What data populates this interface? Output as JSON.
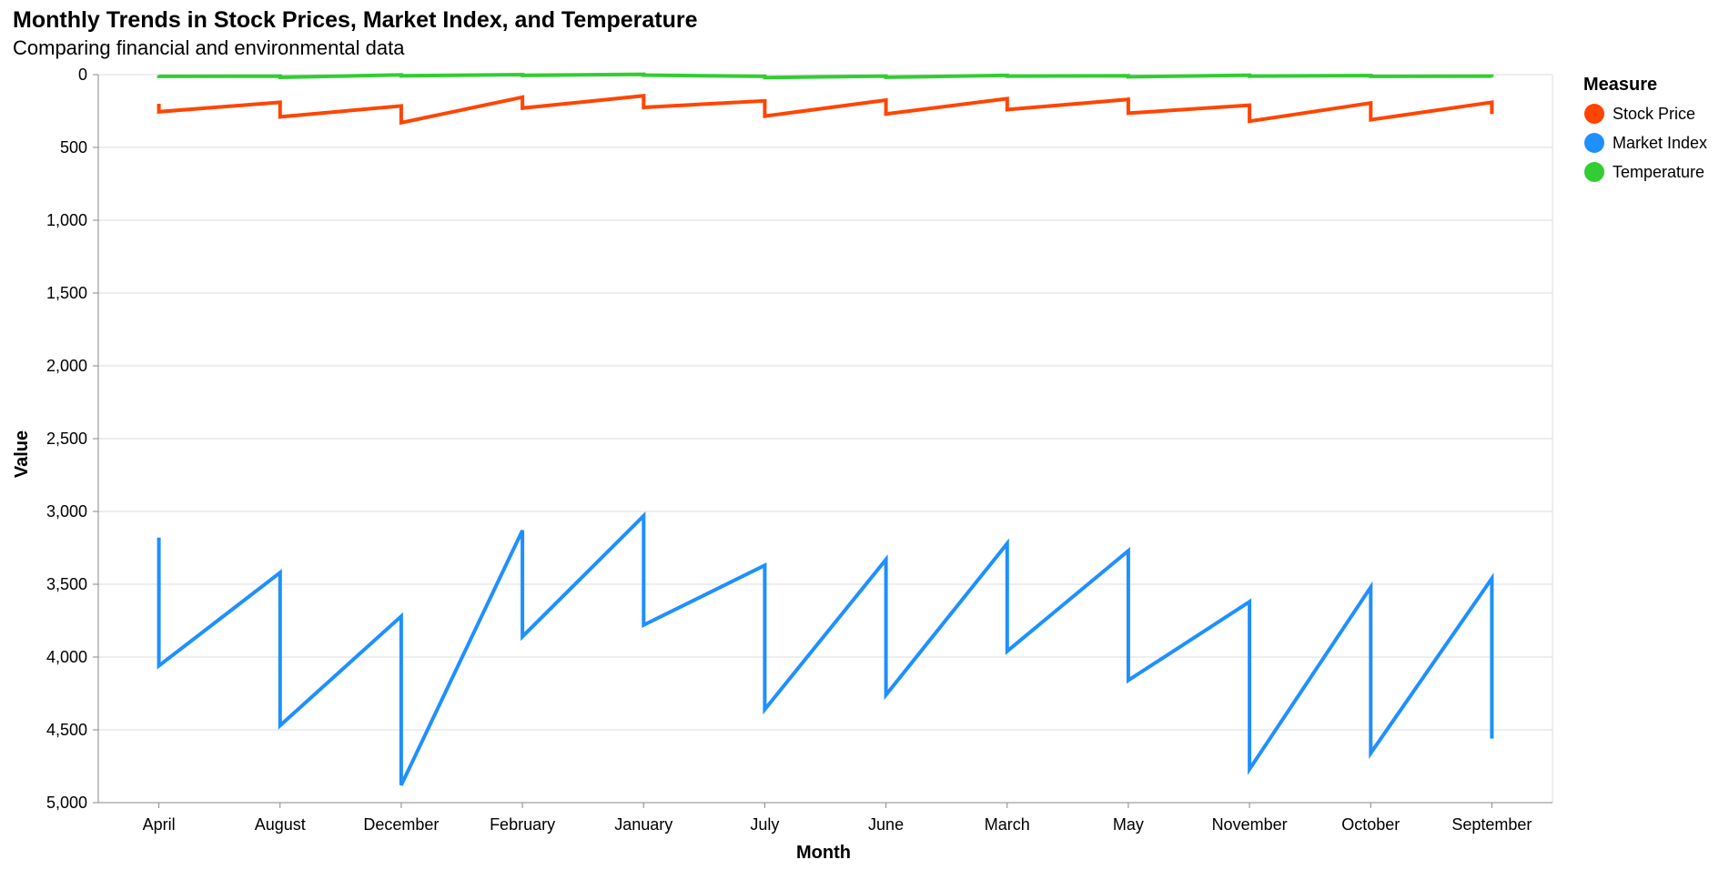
{
  "chart_data": {
    "type": "line",
    "title": "Monthly Trends in Stock Prices, Market Index, and Temperature",
    "subtitle": "Comparing financial and environmental data",
    "xlabel": "Month",
    "ylabel": "Value",
    "categories": [
      "April",
      "August",
      "December",
      "February",
      "January",
      "July",
      "June",
      "March",
      "May",
      "November",
      "October",
      "September"
    ],
    "y_ticks": [
      "0",
      "500",
      "1,000",
      "1,500",
      "2,000",
      "2,500",
      "3,000",
      "3,500",
      "4,000",
      "4,500",
      "5,000"
    ],
    "ylim": [
      0,
      5000
    ],
    "y_reversed": true,
    "grid": true,
    "legend": {
      "title": "Measure",
      "position": "right"
    },
    "series": [
      {
        "name": "Stock Price",
        "color": "#ff4500",
        "values": [
          [
            200,
            255
          ],
          [
            190,
            290
          ],
          [
            215,
            330
          ],
          [
            155,
            230
          ],
          [
            145,
            225
          ],
          [
            180,
            285
          ],
          [
            175,
            270
          ],
          [
            165,
            240
          ],
          [
            170,
            265
          ],
          [
            210,
            320
          ],
          [
            195,
            310
          ],
          [
            190,
            270
          ]
        ]
      },
      {
        "name": "Market Index",
        "color": "#1e90ff",
        "values": [
          [
            3180,
            4060
          ],
          [
            3420,
            4470
          ],
          [
            3720,
            4880
          ],
          [
            3130,
            3860
          ],
          [
            3030,
            3780
          ],
          [
            3370,
            4360
          ],
          [
            3330,
            4260
          ],
          [
            3220,
            3960
          ],
          [
            3270,
            4160
          ],
          [
            3620,
            4770
          ],
          [
            3520,
            4660
          ],
          [
            3460,
            4560
          ]
        ]
      },
      {
        "name": "Temperature",
        "color": "#32cd32",
        "values": [
          [
            5,
            12
          ],
          [
            10,
            18
          ],
          [
            2,
            8
          ],
          [
            0,
            5
          ],
          [
            -2,
            3
          ],
          [
            12,
            20
          ],
          [
            10,
            18
          ],
          [
            5,
            10
          ],
          [
            8,
            15
          ],
          [
            4,
            10
          ],
          [
            6,
            12
          ],
          [
            10,
            16
          ]
        ]
      }
    ]
  }
}
